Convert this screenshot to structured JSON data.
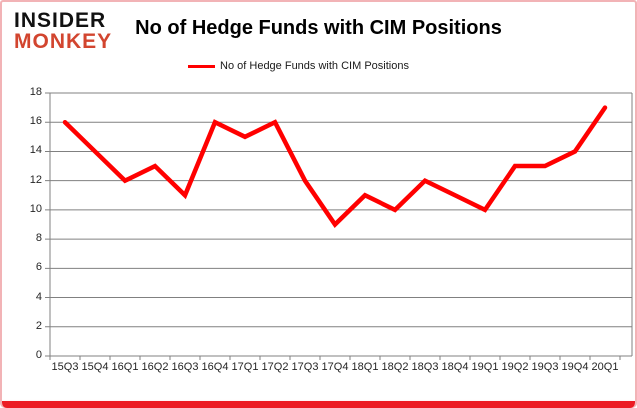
{
  "logo": {
    "line1": "INSIDER",
    "line2": "MONKEY"
  },
  "title": "No of Hedge Funds with CIM Positions",
  "legend": {
    "label": "No of Hedge Funds with CIM Positions"
  },
  "colors": {
    "grid": "#808080",
    "axis_text": "#262626",
    "line_red": "#ff0000",
    "logo_red": "#d2452f",
    "frame_border": "#f2b3b6",
    "bottom_bar": "#ec1c24"
  },
  "chart_data": {
    "type": "line",
    "title": "No of Hedge Funds with CIM Positions",
    "xlabel": "",
    "ylabel": "",
    "categories": [
      "15Q3",
      "15Q4",
      "16Q1",
      "16Q2",
      "16Q3",
      "16Q4",
      "17Q1",
      "17Q2",
      "17Q3",
      "17Q4",
      "18Q1",
      "18Q2",
      "18Q3",
      "18Q4",
      "19Q1",
      "19Q2",
      "19Q3",
      "19Q4",
      "20Q1"
    ],
    "series": [
      {
        "name": "No of Hedge Funds with CIM Positions",
        "color": "#ff0000",
        "values": [
          16,
          14,
          12,
          13,
          11,
          16,
          15,
          16,
          12,
          9,
          11,
          10,
          12,
          11,
          10,
          13,
          13,
          14,
          17
        ]
      }
    ],
    "ylim": [
      0,
      18
    ],
    "ytick_step": 2,
    "grid": true,
    "legend_position": "top"
  }
}
